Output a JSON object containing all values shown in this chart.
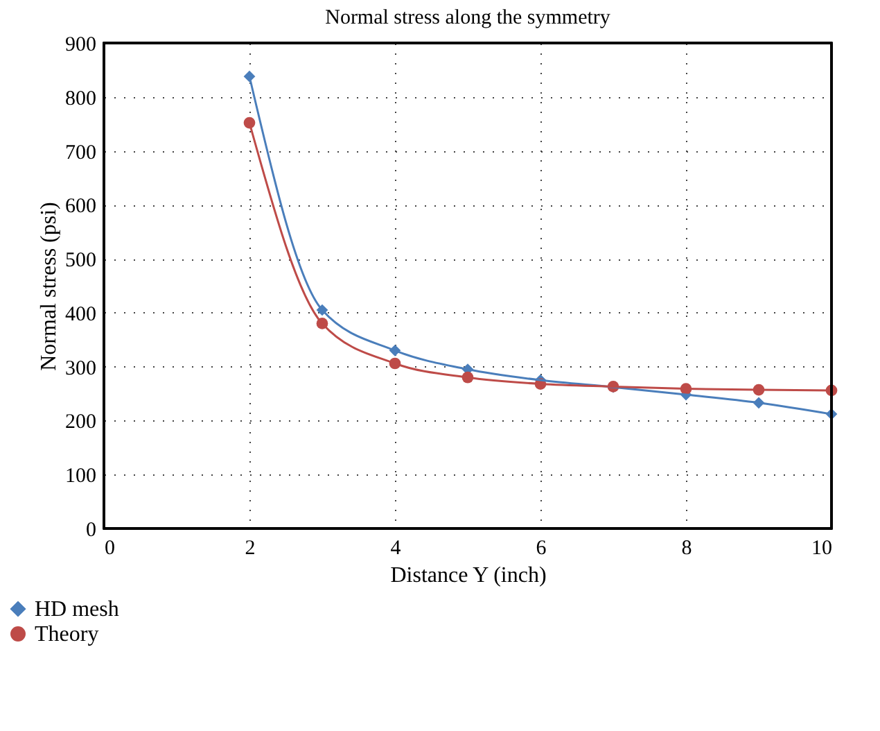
{
  "chart_data": {
    "type": "line",
    "title": "Normal stress along the symmetry",
    "xlabel": "Distance Y (inch)",
    "ylabel": "Normal stress (psi)",
    "x": [
      2,
      3,
      4,
      5,
      6,
      7,
      8,
      9,
      10
    ],
    "series": [
      {
        "name": "HD mesh",
        "color": "#4a7ebb",
        "marker": "diamond",
        "values": [
          838,
          405,
          330,
          295,
          275,
          262,
          248,
          233,
          212
        ]
      },
      {
        "name": "Theory",
        "color": "#be4b48",
        "marker": "circle",
        "values": [
          752,
          380,
          306,
          280,
          268,
          263,
          259,
          257,
          256
        ]
      }
    ],
    "xlim": [
      0,
      10
    ],
    "xticks": [
      0,
      2,
      4,
      6,
      8,
      10
    ],
    "ylim": [
      0,
      900
    ],
    "yticks": [
      0,
      100,
      200,
      300,
      400,
      500,
      600,
      700,
      800,
      900
    ],
    "grid": true,
    "legend": "bottom left",
    "line_style": "solid"
  }
}
